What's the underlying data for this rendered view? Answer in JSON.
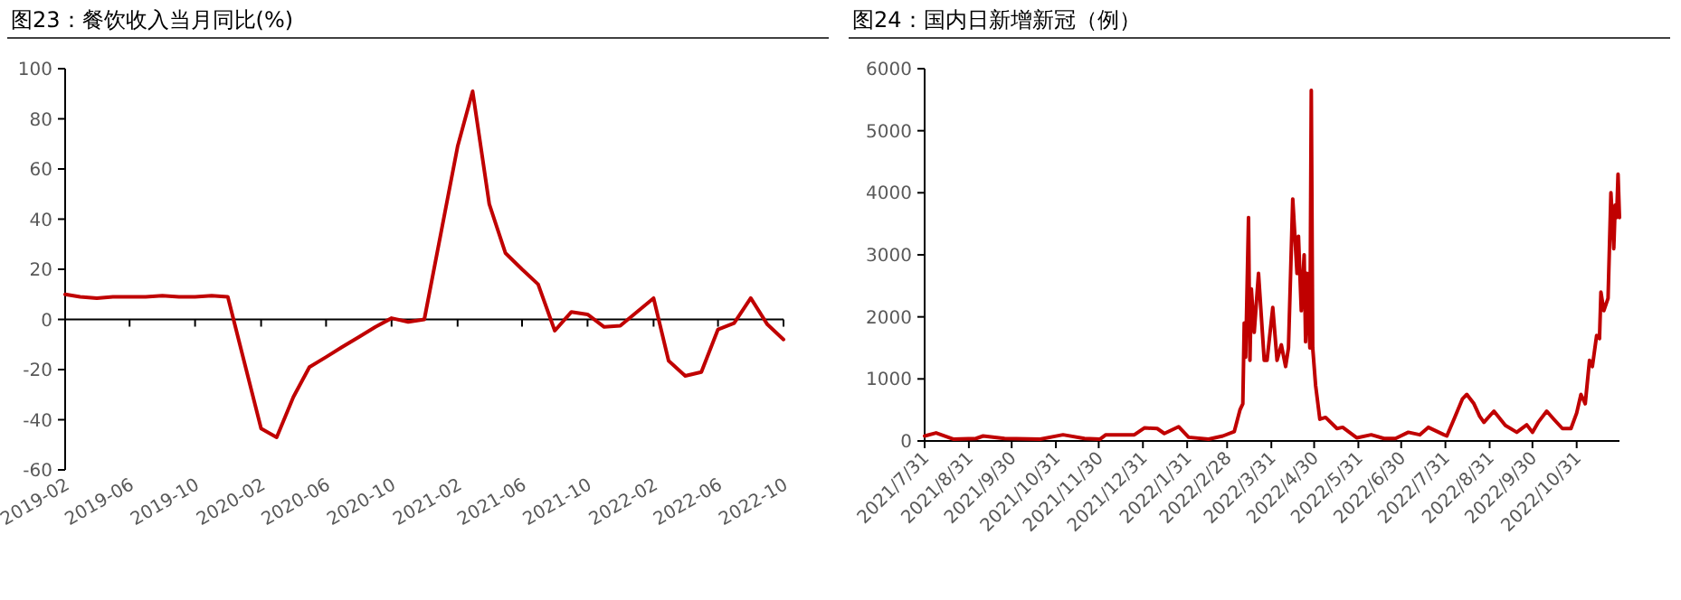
{
  "chart_data": [
    {
      "type": "line",
      "title": "图23：餐饮收入当月同比(%)",
      "color": "#c00000",
      "x": [
        "2019-02",
        "2019-03",
        "2019-04",
        "2019-05",
        "2019-06",
        "2019-07",
        "2019-08",
        "2019-09",
        "2019-10",
        "2019-11",
        "2019-12",
        "2020-02",
        "2020-03",
        "2020-04",
        "2020-05",
        "2020-06",
        "2020-07",
        "2020-08",
        "2020-09",
        "2020-10",
        "2020-11",
        "2020-12",
        "2021-02",
        "2021-03",
        "2021-04",
        "2021-05",
        "2021-06",
        "2021-07",
        "2021-08",
        "2021-09",
        "2021-10",
        "2021-11",
        "2021-12",
        "2022-02",
        "2022-03",
        "2022-04",
        "2022-05",
        "2022-06",
        "2022-07",
        "2022-08",
        "2022-09",
        "2022-10"
      ],
      "values": [
        10,
        9,
        8.5,
        9,
        9,
        9,
        9.5,
        9,
        9,
        9.5,
        9,
        -43.5,
        -47,
        -31,
        -19,
        -15,
        -11,
        -7,
        -3,
        0.5,
        -1,
        0,
        69,
        91,
        46,
        26.5,
        20,
        14,
        -4.5,
        3,
        2,
        -3,
        -2.5,
        8.5,
        -16.5,
        -22.5,
        -21,
        -4,
        -1.5,
        8.5,
        -2,
        -8
      ],
      "xlim": [
        "2019-02",
        "2022-10"
      ],
      "xticks": [
        "2019-02",
        "2019-06",
        "2019-10",
        "2020-02",
        "2020-06",
        "2020-10",
        "2021-02",
        "2021-06",
        "2021-10",
        "2022-02",
        "2022-06",
        "2022-10"
      ],
      "ylim": [
        -60,
        100
      ],
      "yticks": [
        -60,
        -40,
        -20,
        0,
        20,
        40,
        60,
        80,
        100
      ]
    },
    {
      "type": "line",
      "title": "图24：国内日新增新冠（例）",
      "color": "#c00000",
      "x": [
        "2021-07-31",
        "2021-08-08",
        "2021-08-20",
        "2021-09-05",
        "2021-09-10",
        "2021-09-25",
        "2021-10-20",
        "2021-11-05",
        "2021-11-20",
        "2021-12-01",
        "2021-12-05",
        "2021-12-25",
        "2022-01-01",
        "2022-01-10",
        "2022-01-15",
        "2022-01-25",
        "2022-02-01",
        "2022-02-15",
        "2022-02-25",
        "2022-03-05",
        "2022-03-09",
        "2022-03-11",
        "2022-03-12",
        "2022-03-13",
        "2022-03-15",
        "2022-03-16",
        "2022-03-17",
        "2022-03-19",
        "2022-03-22",
        "2022-03-26",
        "2022-03-28",
        "2022-04-01",
        "2022-04-04",
        "2022-04-07",
        "2022-04-10",
        "2022-04-12",
        "2022-04-15",
        "2022-04-18",
        "2022-04-19",
        "2022-04-21",
        "2022-04-23",
        "2022-04-24",
        "2022-04-25",
        "2022-04-27",
        "2022-04-28",
        "2022-04-29",
        "2022-05-01",
        "2022-05-04",
        "2022-05-08",
        "2022-05-16",
        "2022-05-20",
        "2022-05-30",
        "2022-06-09",
        "2022-06-18",
        "2022-06-26",
        "2022-07-05",
        "2022-07-13",
        "2022-07-19",
        "2022-07-30",
        "2022-08-01",
        "2022-08-06",
        "2022-08-12",
        "2022-08-15",
        "2022-08-20",
        "2022-08-24",
        "2022-08-27",
        "2022-09-03",
        "2022-09-11",
        "2022-09-19",
        "2022-09-26",
        "2022-09-30",
        "2022-10-04",
        "2022-10-10",
        "2022-10-15",
        "2022-10-21",
        "2022-10-27",
        "2022-10-31",
        "2022-11-03",
        "2022-11-06",
        "2022-11-09",
        "2022-11-11",
        "2022-11-14",
        "2022-11-16",
        "2022-11-17",
        "2022-11-19",
        "2022-11-22",
        "2022-11-24",
        "2022-11-26",
        "2022-11-27",
        "2022-11-28",
        "2022-11-29",
        "2022-11-30"
      ],
      "values": [
        80,
        130,
        30,
        40,
        80,
        40,
        30,
        100,
        40,
        30,
        100,
        100,
        210,
        200,
        120,
        230,
        60,
        30,
        80,
        150,
        500,
        600,
        1900,
        1350,
        3600,
        1300,
        2450,
        1750,
        2700,
        1300,
        1300,
        2150,
        1300,
        1550,
        1200,
        1500,
        3900,
        2700,
        3300,
        2100,
        3000,
        1600,
        2700,
        1500,
        5650,
        1500,
        900,
        350,
        380,
        200,
        220,
        50,
        100,
        40,
        40,
        140,
        100,
        220,
        100,
        80,
        350,
        680,
        750,
        600,
        400,
        300,
        480,
        250,
        140,
        260,
        140,
        300,
        480,
        350,
        200,
        200,
        450,
        750,
        600,
        1300,
        1200,
        1700,
        1650,
        2400,
        2100,
        2300,
        4000,
        3100,
        3800,
        3600,
        4300,
        3600
      ],
      "xlim": [
        "2021-07-31",
        "2022-11-30"
      ],
      "xticks": [
        {
          "value": "2021-07-31",
          "label": "2021/7/31"
        },
        {
          "value": "2021-08-31",
          "label": "2021/8/31"
        },
        {
          "value": "2021-09-30",
          "label": "2021/9/30"
        },
        {
          "value": "2021-10-31",
          "label": "2021/10/31"
        },
        {
          "value": "2021-11-30",
          "label": "2021/11/30"
        },
        {
          "value": "2021-12-31",
          "label": "2021/12/31"
        },
        {
          "value": "2022-01-31",
          "label": "2022/1/31"
        },
        {
          "value": "2022-02-28",
          "label": "2022/2/28"
        },
        {
          "value": "2022-03-31",
          "label": "2022/3/31"
        },
        {
          "value": "2022-04-30",
          "label": "2022/4/30"
        },
        {
          "value": "2022-05-31",
          "label": "2022/5/31"
        },
        {
          "value": "2022-06-30",
          "label": "2022/6/30"
        },
        {
          "value": "2022-07-31",
          "label": "2022/7/31"
        },
        {
          "value": "2022-08-31",
          "label": "2022/8/31"
        },
        {
          "value": "2022-09-30",
          "label": "2022/9/30"
        },
        {
          "value": "2022-10-31",
          "label": "2022/10/31"
        }
      ],
      "ylim": [
        0,
        6000
      ],
      "yticks": [
        0,
        1000,
        2000,
        3000,
        4000,
        5000,
        6000
      ]
    }
  ]
}
